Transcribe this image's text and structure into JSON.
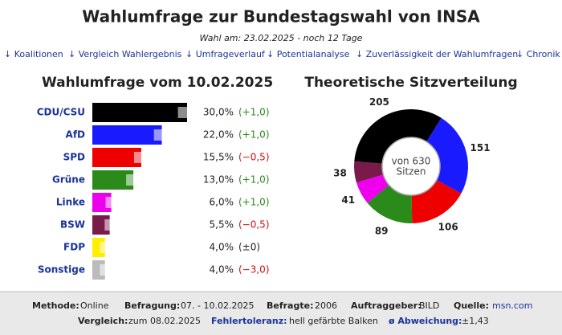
{
  "header": {
    "title": "Wahlumfrage zur Bundestagswahl von INSA",
    "subtitle": "Wahl am: 23.02.2025 - noch 12 Tage"
  },
  "nav": [
    "↓ Koalitionen",
    "↓ Vergleich Wahlergebnis",
    "↓ Umfrageverlauf",
    "↓ Potentialanalyse",
    "↓ Zuverlässigkeit der Wahlumfragen",
    "↓ Chronik"
  ],
  "chart_data": [
    {
      "type": "bar",
      "orientation": "horizontal",
      "title": "Wahlumfrage vom 10.02.2025",
      "categories": [
        "CDU/CSU",
        "AfD",
        "SPD",
        "Grüne",
        "Linke",
        "BSW",
        "FDP",
        "Sonstige"
      ],
      "values": [
        30,
        22,
        15.5,
        13,
        6,
        5.5,
        4,
        4
      ],
      "value_labels": [
        "30,0%",
        "22,0%",
        "15,5%",
        "13,0%",
        "6,0%",
        "5,5%",
        "4,0%",
        "4,0%"
      ],
      "errors": [
        2.9,
        2.5,
        2.3,
        2.3,
        1.8,
        1.6,
        1.6,
        1.6
      ],
      "change": {
        "values": [
          1,
          1,
          -0.5,
          1,
          1,
          -0.5,
          0,
          -3
        ],
        "value_labels": [
          "(+1,0)",
          "(+1,0)",
          "(−0,5)",
          "(+1,0)",
          "(+1,0)",
          "(−0,5)",
          "(±0)",
          "(−3,0)"
        ]
      },
      "colors": [
        "#000000",
        "#1a1aff",
        "#ee0000",
        "#2a8a1a",
        "#ee00ee",
        "#7a1a4a",
        "#ffee00",
        "#bbbbbb"
      ]
    },
    {
      "type": "donut",
      "title": "Theoretische Sitzverteilung",
      "values": [
        205,
        151,
        106,
        89,
        41,
        38
      ],
      "colors": [
        "#000000",
        "#1a1aff",
        "#ee0000",
        "#2a8a1a",
        "#ee00ee",
        "#7a1a4a"
      ],
      "center_label": [
        "von 630",
        "Sitzen"
      ]
    }
  ],
  "footer": {
    "rows": [
      [
        {
          "label": "Methode:",
          "value": "Online"
        },
        {
          "label": "Befragung:",
          "value": "07. - 10.02.2025"
        },
        {
          "label": "Befragte:",
          "value": "2006"
        },
        {
          "label": "Auftraggeber:",
          "value": "BILD"
        },
        {
          "label": "Quelle:",
          "value": "msn.com"
        }
      ],
      [
        {
          "label": "Vergleich:",
          "value": "zum 08.02.2025"
        },
        {
          "label": "Fehlertoleranz:",
          "value": "hell gefärbte Balken"
        },
        {
          "label": "ø Abweichung:",
          "value": "±1,43"
        }
      ]
    ]
  }
}
